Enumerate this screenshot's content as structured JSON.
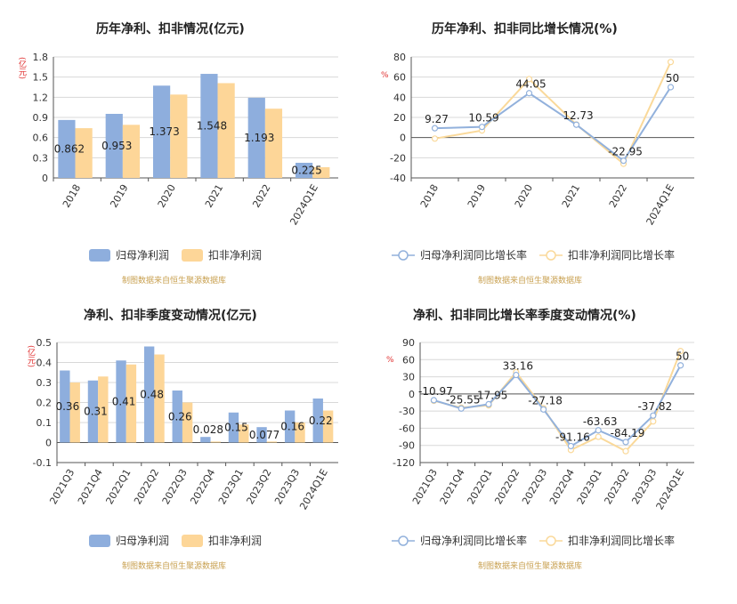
{
  "colors": {
    "blue": "#8eaedd",
    "orange": "#fdd698",
    "blueLine": "#92b1dc",
    "orangeLine": "#fad99a",
    "credit": "#c8a050"
  },
  "credit": "制图数据来自恒生聚源数据库",
  "unit_yi": "(亿元)",
  "unit_pct": "%",
  "chart_data": [
    {
      "type": "bar",
      "title": "历年净利、扣非情况(亿元)",
      "ylabel": "(亿元)",
      "categories": [
        "2018",
        "2019",
        "2020",
        "2021",
        "2022",
        "2024Q1E"
      ],
      "yticks": [
        "0",
        "0.3",
        "0.6",
        "0.9",
        "1.2",
        "1.5",
        "1.8"
      ],
      "ylim": [
        0,
        1.8
      ],
      "series": [
        {
          "name": "归母净利润",
          "values": [
            0.862,
            0.953,
            1.373,
            1.548,
            1.193,
            0.225
          ],
          "labels": [
            "0.862",
            "0.953",
            "1.373",
            "1.548",
            "1.193",
            "0.225"
          ]
        },
        {
          "name": "扣非净利润",
          "values": [
            0.74,
            0.79,
            1.24,
            1.41,
            1.03,
            0.16
          ]
        }
      ]
    },
    {
      "type": "line",
      "title": "历年净利、扣非同比增长情况(%)",
      "ylabel": "%",
      "categories": [
        "2018",
        "2019",
        "2020",
        "2021",
        "2022",
        "2024Q1E"
      ],
      "yticks": [
        "-40",
        "-20",
        "0",
        "20",
        "40",
        "60",
        "80"
      ],
      "ylim": [
        -40,
        80
      ],
      "series": [
        {
          "name": "归母净利润同比增长率",
          "values": [
            9.27,
            10.59,
            44.05,
            12.73,
            -22.95,
            50
          ],
          "labels": [
            "9.27",
            "10.59",
            "44.05",
            "12.73",
            "-22.95",
            "50"
          ]
        },
        {
          "name": "扣非净利润同比增长率",
          "values": [
            -1,
            7,
            58,
            13,
            -26,
            75
          ]
        }
      ]
    },
    {
      "type": "bar",
      "title": "净利、扣非季度变动情况(亿元)",
      "ylabel": "(亿元)",
      "categories": [
        "2021Q3",
        "2021Q4",
        "2022Q1",
        "2022Q2",
        "2022Q3",
        "2022Q4",
        "2023Q1",
        "2023Q2",
        "2023Q3",
        "2024Q1E"
      ],
      "yticks": [
        "-0.1",
        "0",
        "0.1",
        "0.2",
        "0.3",
        "0.4",
        "0.5"
      ],
      "ylim": [
        -0.1,
        0.5
      ],
      "series": [
        {
          "name": "归母净利润",
          "values": [
            0.36,
            0.31,
            0.41,
            0.48,
            0.26,
            0.028,
            0.15,
            0.077,
            0.16,
            0.22
          ],
          "labels": [
            "0.36",
            "0.31",
            "0.41",
            "0.48",
            "0.26",
            "0.028",
            "0.15",
            "0.077",
            "0.16",
            "0.22"
          ]
        },
        {
          "name": "扣非净利润",
          "values": [
            0.3,
            0.33,
            0.39,
            0.44,
            0.2,
            0.005,
            0.09,
            0.005,
            0.1,
            0.16
          ]
        }
      ]
    },
    {
      "type": "line",
      "title": "净利、扣非同比增长率季度变动情况(%)",
      "ylabel": "%",
      "categories": [
        "2021Q3",
        "2021Q4",
        "2022Q1",
        "2022Q2",
        "2022Q3",
        "2022Q4",
        "2023Q1",
        "2023Q2",
        "2023Q3",
        "2024Q1E"
      ],
      "yticks": [
        "-120",
        "-90",
        "-60",
        "-30",
        "0",
        "30",
        "60",
        "90"
      ],
      "ylim": [
        -120,
        90
      ],
      "series": [
        {
          "name": "归母净利润同比增长率",
          "values": [
            -10.97,
            -25.55,
            -17.95,
            33.16,
            -27.18,
            -91.16,
            -63.63,
            -84.19,
            -37.82,
            50
          ],
          "labels": [
            "-10.97",
            "-25.55",
            "-17.95",
            "33.16",
            "-27.18",
            "-91.16",
            "-63.63",
            "-84.19",
            "-37.82",
            "50"
          ]
        },
        {
          "name": "扣非净利润同比增长率",
          "values": [
            -12,
            -24,
            -20,
            38,
            -25,
            -98,
            -75,
            -100,
            -48,
            75
          ]
        }
      ]
    }
  ]
}
